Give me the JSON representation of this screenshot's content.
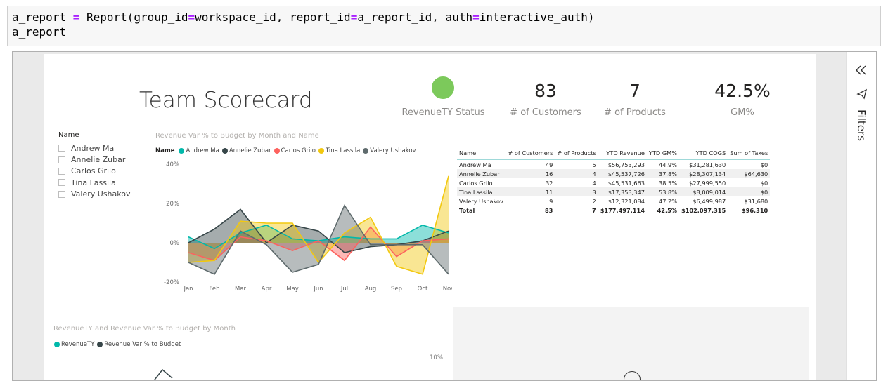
{
  "code": {
    "line1_var": "a_report",
    "line1_op": "=",
    "line1_call": "Report(group_id",
    "line1_eq1": "=",
    "line1_arg1": "workspace_id, report_id",
    "line1_eq2": "=",
    "line1_arg2": "a_report_id, auth",
    "line1_eq3": "=",
    "line1_arg3": "interactive_auth)",
    "line2": "a_report"
  },
  "report": {
    "title": "Team Scorecard",
    "status_label": "RevenueTY Status",
    "status_color": "#7cc95b",
    "kpis": [
      {
        "value": "83",
        "label": "# of Customers"
      },
      {
        "value": "7",
        "label": "# of Products"
      },
      {
        "value": "42.5%",
        "label": "GM%"
      }
    ],
    "slicer": {
      "title": "Name",
      "items": [
        "Andrew Ma",
        "Annelie Zubar",
        "Carlos Grilo",
        "Tina Lassila",
        "Valery Ushakov"
      ]
    },
    "line_chart_title": "Revenue Var % to Budget by Month and Name",
    "legend_title": "Name",
    "bottom_chart_title": "RevenueTY and Revenue Var % to Budget by Month",
    "bottom_legend": [
      "RevenueTY",
      "Revenue Var % to Budget"
    ],
    "bottom_tick": "10%",
    "matrix": {
      "headers": [
        "Name",
        "# of Customers",
        "# of Products",
        "YTD Revenue",
        "YTD GM%",
        "YTD COGS",
        "Sum of Taxes"
      ],
      "rows": [
        [
          "Andrew Ma",
          "49",
          "5",
          "$56,753,293",
          "44.9%",
          "$31,281,630",
          "$0"
        ],
        [
          "Annelie Zubar",
          "16",
          "4",
          "$45,537,726",
          "37.8%",
          "$28,307,134",
          "$64,630"
        ],
        [
          "Carlos Grilo",
          "32",
          "4",
          "$45,531,663",
          "38.5%",
          "$27,999,550",
          "$0"
        ],
        [
          "Tina Lassila",
          "11",
          "3",
          "$17,353,347",
          "53.8%",
          "$8,009,014",
          "$0"
        ],
        [
          "Valery Ushakov",
          "9",
          "2",
          "$12,321,084",
          "47.2%",
          "$6,499,987",
          "$31,680"
        ]
      ],
      "total": [
        "Total",
        "83",
        "7",
        "$177,497,114",
        "42.5%",
        "$102,097,315",
        "$96,310"
      ]
    },
    "filters_label": "Filters",
    "collapse_icon": "double-chevron-left-icon",
    "filter_icon": "funnel-icon"
  },
  "chart_data": {
    "type": "area",
    "title": "Revenue Var % to Budget by Month and Name",
    "categories": [
      "Jan",
      "Feb",
      "Mar",
      "Apr",
      "May",
      "Jun",
      "Jul",
      "Aug",
      "Sep",
      "Oct",
      "Nov"
    ],
    "ylim": [
      -20,
      40
    ],
    "yticks": [
      "40%",
      "20%",
      "0%",
      "-20%"
    ],
    "legend_position": "top-left",
    "series": [
      {
        "name": "Andrew Ma",
        "color": "#01b8aa",
        "values": [
          3,
          -3,
          5,
          9,
          2,
          1,
          3,
          2,
          2,
          9,
          5
        ]
      },
      {
        "name": "Annelie Zubar",
        "color": "#374649",
        "values": [
          0,
          7,
          17,
          0,
          9,
          6,
          -5,
          -2,
          -1,
          1,
          6
        ]
      },
      {
        "name": "Carlos Grilo",
        "color": "#fd625e",
        "values": [
          -5,
          -9,
          3,
          1,
          -4,
          1,
          -9,
          8,
          -7,
          1,
          2
        ]
      },
      {
        "name": "Tina Lassila",
        "color": "#f2c80f",
        "values": [
          -10,
          -9,
          11,
          10,
          10,
          -10,
          5,
          13,
          -12,
          -16,
          34
        ]
      },
      {
        "name": "Valery Ushakov",
        "color": "#5f6b6d",
        "values": [
          -10,
          -16,
          6,
          -1,
          -15,
          -11,
          19,
          -1,
          -1,
          -1,
          -16
        ]
      }
    ]
  }
}
